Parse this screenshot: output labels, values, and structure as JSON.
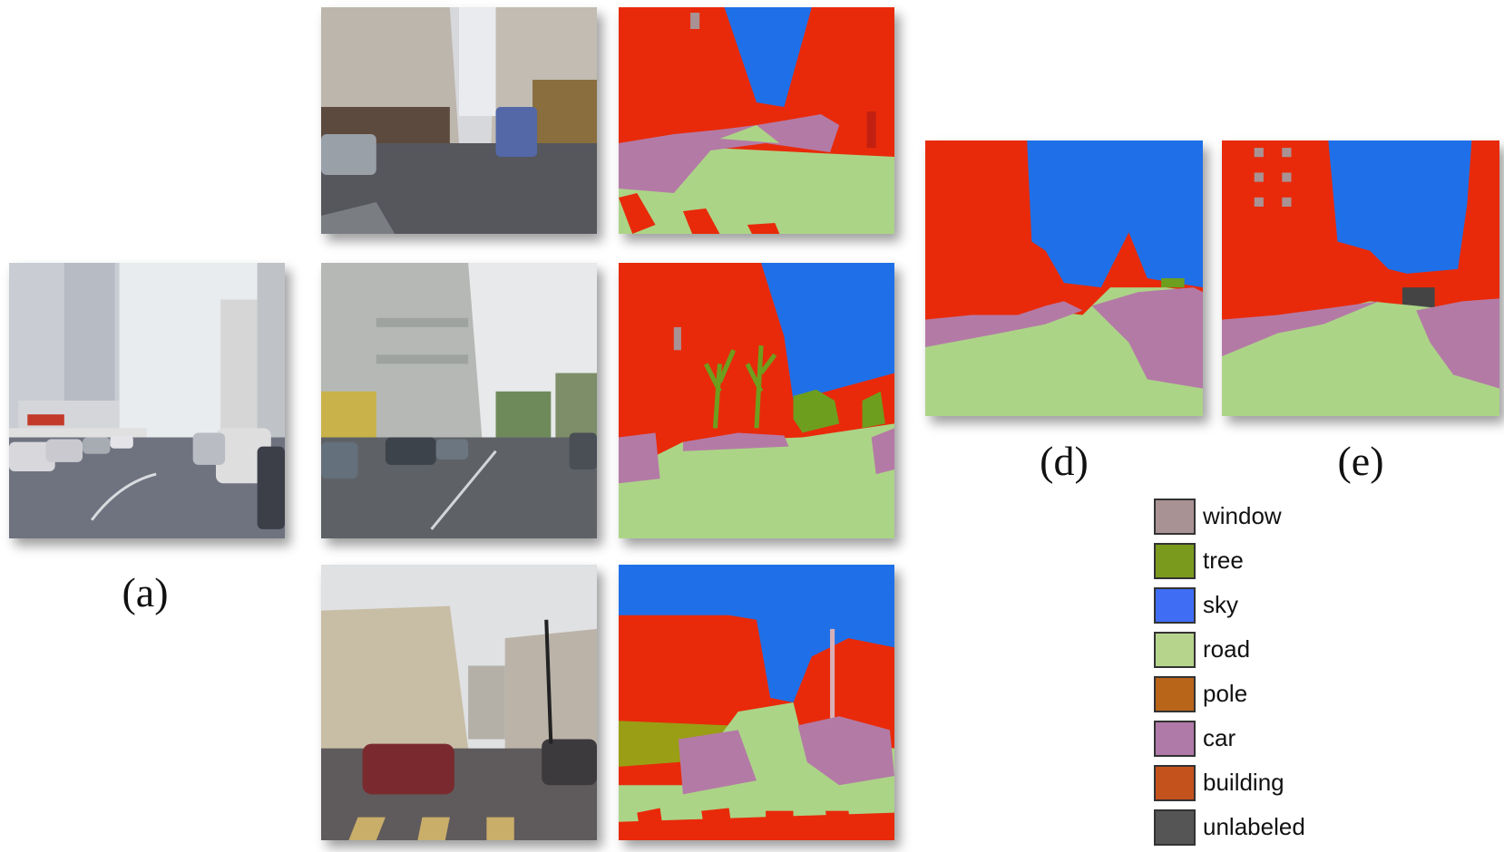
{
  "captions": {
    "a": "(a)",
    "d": "(d)",
    "e": "(e)"
  },
  "legend": [
    {
      "label": "window",
      "color": "#a89294"
    },
    {
      "label": "tree",
      "color": "#7a9a1e"
    },
    {
      "label": "sky",
      "color": "#3f6ef5"
    },
    {
      "label": "road",
      "color": "#b6d48c"
    },
    {
      "label": "pole",
      "color": "#b8651a"
    },
    {
      "label": "car",
      "color": "#b07aa8"
    },
    {
      "label": "building",
      "color": "#c4521c"
    },
    {
      "label": "unlabeled",
      "color": "#555555"
    }
  ],
  "palette": {
    "building_seg": "#e82a0a",
    "sky_seg": "#1f70e8",
    "road_seg": "#acd487",
    "car_seg": "#b47aa6",
    "tree_seg": "#6e9e1e",
    "window_seg": "#a89294",
    "unlabeled_seg": "#444444"
  }
}
